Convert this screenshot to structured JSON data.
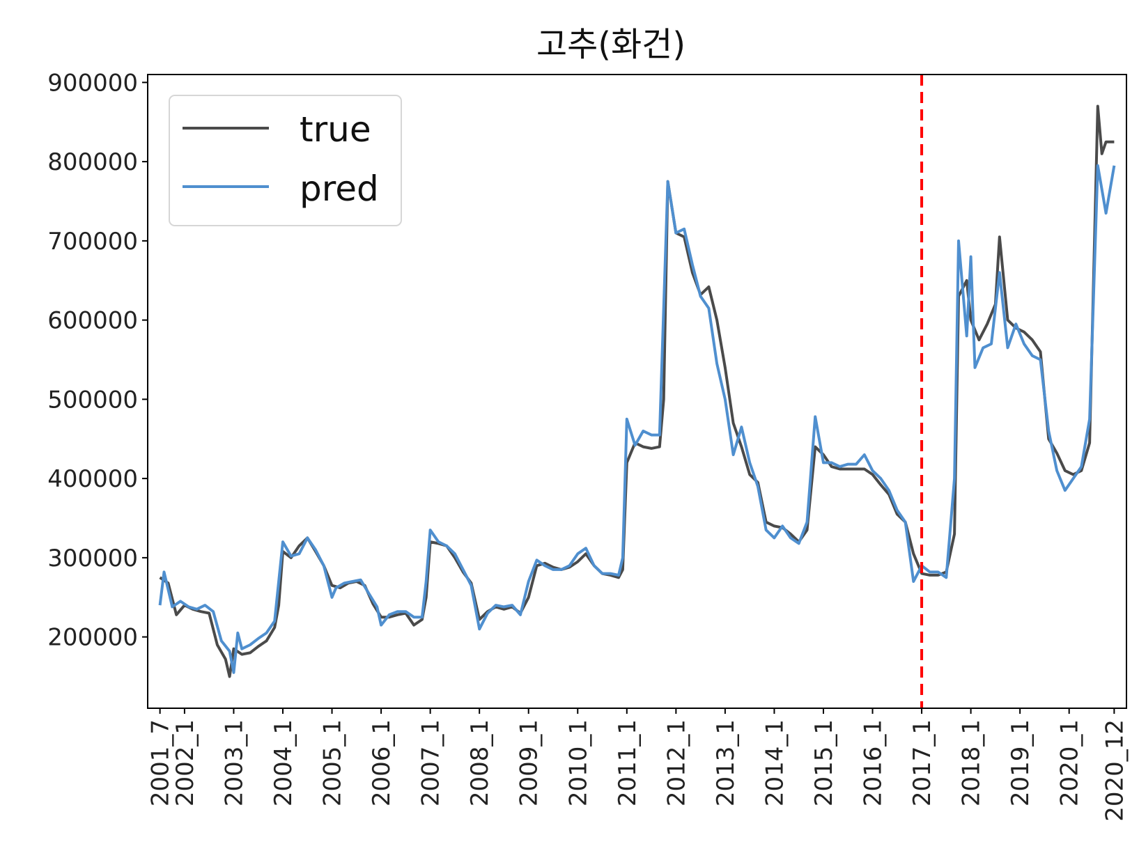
{
  "chart_data": {
    "type": "line",
    "title": "고추(화건)",
    "xlabel": "",
    "ylabel": "",
    "ylim": [
      110000,
      910000
    ],
    "yticks": [
      200000,
      300000,
      400000,
      500000,
      600000,
      700000,
      800000,
      900000
    ],
    "ytick_labels": [
      "200000",
      "300000",
      "400000",
      "500000",
      "600000",
      "700000",
      "800000",
      "900000"
    ],
    "x_range_months": [
      "2001_7",
      "2020_12"
    ],
    "xticks": [
      {
        "label": "2001_7",
        "x": "2001_7"
      },
      {
        "label": "2002_1",
        "x": "2002_1"
      },
      {
        "label": "2003_1",
        "x": "2003_1"
      },
      {
        "label": "2004_1",
        "x": "2004_1"
      },
      {
        "label": "2005_1",
        "x": "2005_1"
      },
      {
        "label": "2006_1",
        "x": "2006_1"
      },
      {
        "label": "2007_1",
        "x": "2007_1"
      },
      {
        "label": "2008_1",
        "x": "2008_1"
      },
      {
        "label": "2009_1",
        "x": "2009_1"
      },
      {
        "label": "2010_1",
        "x": "2010_1"
      },
      {
        "label": "2011_1",
        "x": "2011_1"
      },
      {
        "label": "2012_1",
        "x": "2012_1"
      },
      {
        "label": "2013_1",
        "x": "2013_1"
      },
      {
        "label": "2014_1",
        "x": "2014_1"
      },
      {
        "label": "2015_1",
        "x": "2015_1"
      },
      {
        "label": "2016_1",
        "x": "2016_1"
      },
      {
        "label": "2017_1",
        "x": "2017_1"
      },
      {
        "label": "2018_1",
        "x": "2018_1"
      },
      {
        "label": "2019_1",
        "x": "2019_1"
      },
      {
        "label": "2020_1",
        "x": "2020_1"
      },
      {
        "label": "2020_12",
        "x": "2020_12"
      }
    ],
    "vline": {
      "x": "2017_1",
      "color": "#ff0000",
      "style": "dashed"
    },
    "legend": {
      "placement": "upper-left"
    },
    "grid": false,
    "series": [
      {
        "name": "true",
        "color": "#4a4a4a",
        "points": [
          [
            "2001_7",
            275000
          ],
          [
            "2001_9",
            268000
          ],
          [
            "2001_11",
            228000
          ],
          [
            "2002_1",
            240000
          ],
          [
            "2002_3",
            235000
          ],
          [
            "2002_5",
            232000
          ],
          [
            "2002_7",
            230000
          ],
          [
            "2002_9",
            190000
          ],
          [
            "2002_11",
            172000
          ],
          [
            "2002_12",
            150000
          ],
          [
            "2003_1",
            185000
          ],
          [
            "2003_3",
            178000
          ],
          [
            "2003_5",
            180000
          ],
          [
            "2003_7",
            188000
          ],
          [
            "2003_9",
            195000
          ],
          [
            "2003_11",
            212000
          ],
          [
            "2003_12",
            240000
          ],
          [
            "2004_1",
            308000
          ],
          [
            "2004_3",
            300000
          ],
          [
            "2004_5",
            315000
          ],
          [
            "2004_7",
            325000
          ],
          [
            "2004_9",
            308000
          ],
          [
            "2004_11",
            290000
          ],
          [
            "2005_1",
            265000
          ],
          [
            "2005_3",
            262000
          ],
          [
            "2005_5",
            268000
          ],
          [
            "2005_7",
            270000
          ],
          [
            "2005_9",
            265000
          ],
          [
            "2005_11",
            242000
          ],
          [
            "2006_1",
            225000
          ],
          [
            "2006_3",
            225000
          ],
          [
            "2006_5",
            228000
          ],
          [
            "2006_7",
            230000
          ],
          [
            "2006_9",
            215000
          ],
          [
            "2006_11",
            222000
          ],
          [
            "2006_12",
            250000
          ],
          [
            "2007_1",
            320000
          ],
          [
            "2007_3",
            318000
          ],
          [
            "2007_5",
            315000
          ],
          [
            "2007_7",
            300000
          ],
          [
            "2007_9",
            282000
          ],
          [
            "2007_11",
            268000
          ],
          [
            "2008_1",
            222000
          ],
          [
            "2008_3",
            232000
          ],
          [
            "2008_5",
            238000
          ],
          [
            "2008_7",
            235000
          ],
          [
            "2008_9",
            238000
          ],
          [
            "2008_11",
            230000
          ],
          [
            "2009_1",
            250000
          ],
          [
            "2009_3",
            290000
          ],
          [
            "2009_5",
            293000
          ],
          [
            "2009_7",
            288000
          ],
          [
            "2009_9",
            285000
          ],
          [
            "2009_11",
            288000
          ],
          [
            "2010_1",
            295000
          ],
          [
            "2010_3",
            305000
          ],
          [
            "2010_5",
            290000
          ],
          [
            "2010_7",
            280000
          ],
          [
            "2010_9",
            278000
          ],
          [
            "2010_11",
            275000
          ],
          [
            "2010_12",
            285000
          ],
          [
            "2011_1",
            420000
          ],
          [
            "2011_3",
            445000
          ],
          [
            "2011_5",
            440000
          ],
          [
            "2011_7",
            438000
          ],
          [
            "2011_9",
            440000
          ],
          [
            "2011_10",
            500000
          ],
          [
            "2011_11",
            775000
          ],
          [
            "2012_1",
            710000
          ],
          [
            "2012_3",
            705000
          ],
          [
            "2012_5",
            660000
          ],
          [
            "2012_7",
            632000
          ],
          [
            "2012_9",
            642000
          ],
          [
            "2012_11",
            600000
          ],
          [
            "2013_1",
            540000
          ],
          [
            "2013_3",
            470000
          ],
          [
            "2013_5",
            440000
          ],
          [
            "2013_7",
            405000
          ],
          [
            "2013_9",
            395000
          ],
          [
            "2013_11",
            345000
          ],
          [
            "2014_1",
            340000
          ],
          [
            "2014_3",
            338000
          ],
          [
            "2014_5",
            330000
          ],
          [
            "2014_7",
            320000
          ],
          [
            "2014_9",
            335000
          ],
          [
            "2014_11",
            440000
          ],
          [
            "2015_1",
            430000
          ],
          [
            "2015_3",
            415000
          ],
          [
            "2015_5",
            412000
          ],
          [
            "2015_7",
            412000
          ],
          [
            "2015_9",
            412000
          ],
          [
            "2015_11",
            412000
          ],
          [
            "2016_1",
            405000
          ],
          [
            "2016_3",
            392000
          ],
          [
            "2016_5",
            380000
          ],
          [
            "2016_7",
            355000
          ],
          [
            "2016_9",
            345000
          ],
          [
            "2016_11",
            305000
          ],
          [
            "2017_1",
            280000
          ],
          [
            "2017_3",
            278000
          ],
          [
            "2017_5",
            278000
          ],
          [
            "2017_7",
            282000
          ],
          [
            "2017_9",
            330000
          ],
          [
            "2017_10",
            630000
          ],
          [
            "2017_12",
            650000
          ],
          [
            "2018_1",
            600000
          ],
          [
            "2018_3",
            575000
          ],
          [
            "2018_5",
            595000
          ],
          [
            "2018_7",
            620000
          ],
          [
            "2018_8",
            705000
          ],
          [
            "2018_10",
            600000
          ],
          [
            "2018_12",
            590000
          ],
          [
            "2019_2",
            585000
          ],
          [
            "2019_4",
            575000
          ],
          [
            "2019_6",
            560000
          ],
          [
            "2019_8",
            450000
          ],
          [
            "2019_10",
            432000
          ],
          [
            "2019_12",
            410000
          ],
          [
            "2020_2",
            405000
          ],
          [
            "2020_4",
            410000
          ],
          [
            "2020_6",
            445000
          ],
          [
            "2020_8",
            870000
          ],
          [
            "2020_9",
            810000
          ],
          [
            "2020_10",
            825000
          ],
          [
            "2020_12",
            825000
          ]
        ]
      },
      {
        "name": "pred",
        "color": "#4f8fcf",
        "points": [
          [
            "2001_7",
            240000
          ],
          [
            "2001_8",
            282000
          ],
          [
            "2001_10",
            238000
          ],
          [
            "2001_12",
            245000
          ],
          [
            "2002_2",
            238000
          ],
          [
            "2002_4",
            235000
          ],
          [
            "2002_6",
            240000
          ],
          [
            "2002_8",
            232000
          ],
          [
            "2002_10",
            195000
          ],
          [
            "2002_12",
            182000
          ],
          [
            "2003_1",
            155000
          ],
          [
            "2003_2",
            205000
          ],
          [
            "2003_3",
            185000
          ],
          [
            "2003_5",
            190000
          ],
          [
            "2003_7",
            198000
          ],
          [
            "2003_9",
            205000
          ],
          [
            "2003_11",
            220000
          ],
          [
            "2004_1",
            320000
          ],
          [
            "2004_3",
            302000
          ],
          [
            "2004_5",
            305000
          ],
          [
            "2004_7",
            325000
          ],
          [
            "2004_9",
            310000
          ],
          [
            "2004_11",
            290000
          ],
          [
            "2005_1",
            250000
          ],
          [
            "2005_2",
            262000
          ],
          [
            "2005_4",
            268000
          ],
          [
            "2005_6",
            270000
          ],
          [
            "2005_8",
            272000
          ],
          [
            "2005_10",
            255000
          ],
          [
            "2005_12",
            238000
          ],
          [
            "2006_1",
            215000
          ],
          [
            "2006_3",
            228000
          ],
          [
            "2006_5",
            232000
          ],
          [
            "2006_7",
            232000
          ],
          [
            "2006_9",
            225000
          ],
          [
            "2006_11",
            225000
          ],
          [
            "2006_12",
            270000
          ],
          [
            "2007_1",
            335000
          ],
          [
            "2007_3",
            320000
          ],
          [
            "2007_5",
            315000
          ],
          [
            "2007_7",
            305000
          ],
          [
            "2007_9",
            285000
          ],
          [
            "2007_11",
            265000
          ],
          [
            "2008_1",
            210000
          ],
          [
            "2008_3",
            230000
          ],
          [
            "2008_5",
            240000
          ],
          [
            "2008_7",
            238000
          ],
          [
            "2008_9",
            240000
          ],
          [
            "2008_11",
            228000
          ],
          [
            "2009_1",
            270000
          ],
          [
            "2009_3",
            297000
          ],
          [
            "2009_5",
            290000
          ],
          [
            "2009_7",
            285000
          ],
          [
            "2009_9",
            285000
          ],
          [
            "2009_11",
            290000
          ],
          [
            "2010_1",
            305000
          ],
          [
            "2010_3",
            312000
          ],
          [
            "2010_5",
            290000
          ],
          [
            "2010_7",
            280000
          ],
          [
            "2010_9",
            280000
          ],
          [
            "2010_11",
            278000
          ],
          [
            "2010_12",
            300000
          ],
          [
            "2011_1",
            475000
          ],
          [
            "2011_3",
            442000
          ],
          [
            "2011_5",
            460000
          ],
          [
            "2011_7",
            455000
          ],
          [
            "2011_9",
            455000
          ],
          [
            "2011_11",
            775000
          ],
          [
            "2012_1",
            710000
          ],
          [
            "2012_3",
            715000
          ],
          [
            "2012_5",
            670000
          ],
          [
            "2012_7",
            630000
          ],
          [
            "2012_9",
            615000
          ],
          [
            "2012_11",
            545000
          ],
          [
            "2013_1",
            500000
          ],
          [
            "2013_3",
            430000
          ],
          [
            "2013_5",
            465000
          ],
          [
            "2013_7",
            420000
          ],
          [
            "2013_9",
            390000
          ],
          [
            "2013_11",
            335000
          ],
          [
            "2014_1",
            325000
          ],
          [
            "2014_3",
            340000
          ],
          [
            "2014_5",
            325000
          ],
          [
            "2014_7",
            318000
          ],
          [
            "2014_9",
            345000
          ],
          [
            "2014_11",
            478000
          ],
          [
            "2015_1",
            420000
          ],
          [
            "2015_3",
            420000
          ],
          [
            "2015_5",
            415000
          ],
          [
            "2015_7",
            418000
          ],
          [
            "2015_9",
            418000
          ],
          [
            "2015_11",
            430000
          ],
          [
            "2016_1",
            410000
          ],
          [
            "2016_3",
            400000
          ],
          [
            "2016_5",
            385000
          ],
          [
            "2016_7",
            360000
          ],
          [
            "2016_9",
            345000
          ],
          [
            "2016_11",
            270000
          ],
          [
            "2017_1",
            290000
          ],
          [
            "2017_3",
            282000
          ],
          [
            "2017_5",
            282000
          ],
          [
            "2017_7",
            275000
          ],
          [
            "2017_9",
            400000
          ],
          [
            "2017_10",
            700000
          ],
          [
            "2017_12",
            580000
          ],
          [
            "2018_1",
            680000
          ],
          [
            "2018_2",
            540000
          ],
          [
            "2018_4",
            565000
          ],
          [
            "2018_6",
            570000
          ],
          [
            "2018_8",
            660000
          ],
          [
            "2018_10",
            565000
          ],
          [
            "2018_12",
            595000
          ],
          [
            "2019_2",
            570000
          ],
          [
            "2019_4",
            555000
          ],
          [
            "2019_6",
            550000
          ],
          [
            "2019_8",
            460000
          ],
          [
            "2019_10",
            410000
          ],
          [
            "2019_12",
            385000
          ],
          [
            "2020_2",
            400000
          ],
          [
            "2020_4",
            415000
          ],
          [
            "2020_6",
            475000
          ],
          [
            "2020_8",
            795000
          ],
          [
            "2020_10",
            735000
          ],
          [
            "2020_12",
            795000
          ]
        ]
      }
    ]
  }
}
